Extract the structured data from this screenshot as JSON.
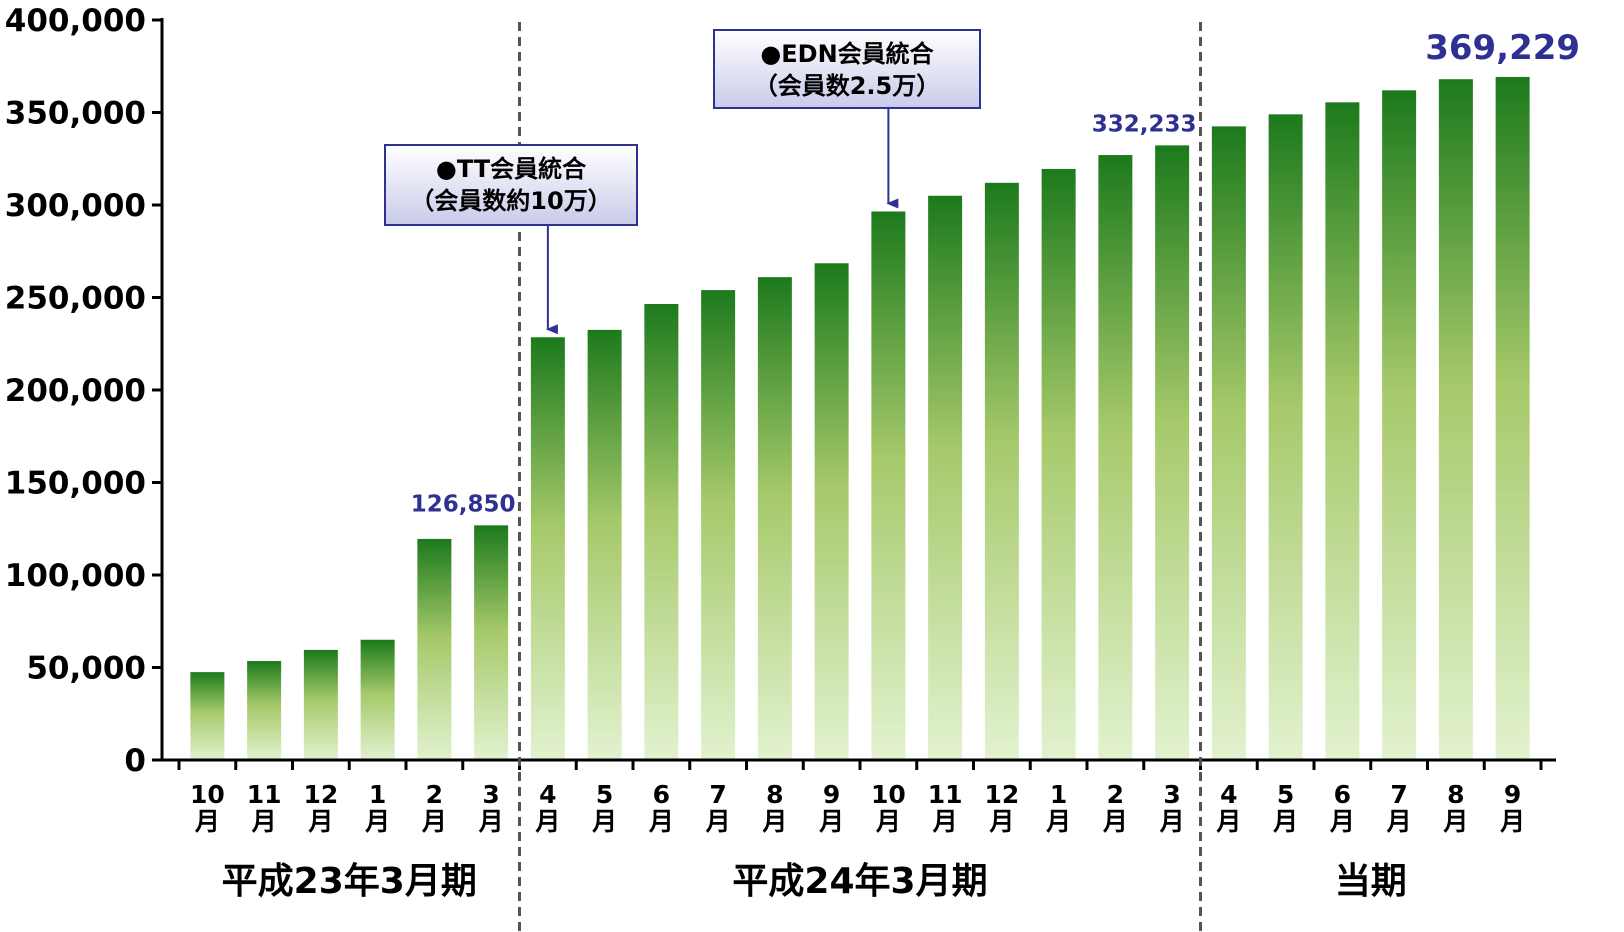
{
  "chart_data": {
    "type": "bar",
    "categories": [
      {
        "num": "10",
        "unit": "月"
      },
      {
        "num": "11",
        "unit": "月"
      },
      {
        "num": "12",
        "unit": "月"
      },
      {
        "num": "1",
        "unit": "月"
      },
      {
        "num": "2",
        "unit": "月"
      },
      {
        "num": "3",
        "unit": "月"
      },
      {
        "num": "4",
        "unit": "月"
      },
      {
        "num": "5",
        "unit": "月"
      },
      {
        "num": "6",
        "unit": "月"
      },
      {
        "num": "7",
        "unit": "月"
      },
      {
        "num": "8",
        "unit": "月"
      },
      {
        "num": "9",
        "unit": "月"
      },
      {
        "num": "10",
        "unit": "月"
      },
      {
        "num": "11",
        "unit": "月"
      },
      {
        "num": "12",
        "unit": "月"
      },
      {
        "num": "1",
        "unit": "月"
      },
      {
        "num": "2",
        "unit": "月"
      },
      {
        "num": "3",
        "unit": "月"
      },
      {
        "num": "4",
        "unit": "月"
      },
      {
        "num": "5",
        "unit": "月"
      },
      {
        "num": "6",
        "unit": "月"
      },
      {
        "num": "7",
        "unit": "月"
      },
      {
        "num": "8",
        "unit": "月"
      },
      {
        "num": "9",
        "unit": "月"
      }
    ],
    "values": [
      47500,
      53500,
      59500,
      65000,
      119500,
      126850,
      228500,
      232500,
      246500,
      254000,
      261000,
      268500,
      296500,
      305000,
      312000,
      319500,
      327000,
      332233,
      342500,
      349000,
      355500,
      362000,
      368000,
      369229
    ],
    "ylim": [
      0,
      400000
    ],
    "yticks": [
      "0",
      "50,000",
      "100,000",
      "150,000",
      "200,000",
      "250,000",
      "300,000",
      "350,000",
      "400,000"
    ],
    "periods": [
      {
        "label": "平成23年3月期",
        "start": 0,
        "end": 5
      },
      {
        "label": "平成24年3月期",
        "start": 6,
        "end": 17
      },
      {
        "label": "当期",
        "start": 18,
        "end": 23
      }
    ],
    "data_labels": [
      {
        "index": 5,
        "text": "126,850",
        "size": "small"
      },
      {
        "index": 17,
        "text": "332,233",
        "size": "small"
      },
      {
        "index": 23,
        "text": "369,229",
        "size": "large"
      }
    ],
    "annotations": [
      {
        "target_index": 6,
        "lines": [
          "●TT会員統合",
          "（会員数約10万）"
        ]
      },
      {
        "target_index": 12,
        "lines": [
          "●EDN会員統合",
          "（会員数2.5万）"
        ]
      }
    ],
    "xlabel": "",
    "ylabel": "",
    "grid": false,
    "colors": {
      "bar_top": "#1c7a1c",
      "bar_mid": "#a6c96a",
      "bar_bottom": "#e2f2cf",
      "label": "#2e3192",
      "divider": "#555555"
    }
  }
}
